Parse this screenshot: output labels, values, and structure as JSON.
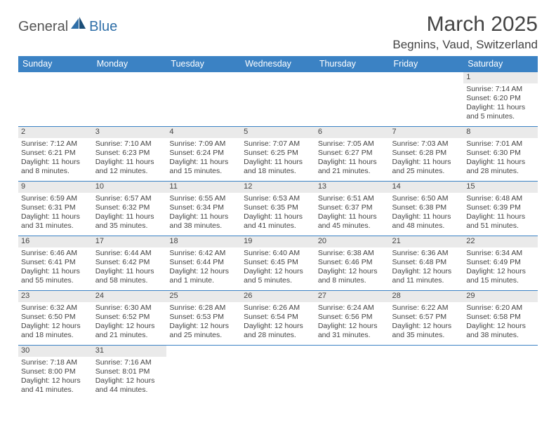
{
  "logo": {
    "part1": "General",
    "part2": "Blue"
  },
  "title": "March 2025",
  "location": "Begnins, Vaud, Switzerland",
  "colors": {
    "header_bg": "#3b82c4",
    "header_fg": "#ffffff",
    "daynum_bg": "#eaeaea",
    "border": "#3b82c4",
    "logo_accent": "#2f6fa8"
  },
  "weekdays": [
    "Sunday",
    "Monday",
    "Tuesday",
    "Wednesday",
    "Thursday",
    "Friday",
    "Saturday"
  ],
  "weeks": [
    [
      null,
      null,
      null,
      null,
      null,
      null,
      {
        "n": "1",
        "sr": "Sunrise: 7:14 AM",
        "ss": "Sunset: 6:20 PM",
        "d1": "Daylight: 11 hours",
        "d2": "and 5 minutes."
      }
    ],
    [
      {
        "n": "2",
        "sr": "Sunrise: 7:12 AM",
        "ss": "Sunset: 6:21 PM",
        "d1": "Daylight: 11 hours",
        "d2": "and 8 minutes."
      },
      {
        "n": "3",
        "sr": "Sunrise: 7:10 AM",
        "ss": "Sunset: 6:23 PM",
        "d1": "Daylight: 11 hours",
        "d2": "and 12 minutes."
      },
      {
        "n": "4",
        "sr": "Sunrise: 7:09 AM",
        "ss": "Sunset: 6:24 PM",
        "d1": "Daylight: 11 hours",
        "d2": "and 15 minutes."
      },
      {
        "n": "5",
        "sr": "Sunrise: 7:07 AM",
        "ss": "Sunset: 6:25 PM",
        "d1": "Daylight: 11 hours",
        "d2": "and 18 minutes."
      },
      {
        "n": "6",
        "sr": "Sunrise: 7:05 AM",
        "ss": "Sunset: 6:27 PM",
        "d1": "Daylight: 11 hours",
        "d2": "and 21 minutes."
      },
      {
        "n": "7",
        "sr": "Sunrise: 7:03 AM",
        "ss": "Sunset: 6:28 PM",
        "d1": "Daylight: 11 hours",
        "d2": "and 25 minutes."
      },
      {
        "n": "8",
        "sr": "Sunrise: 7:01 AM",
        "ss": "Sunset: 6:30 PM",
        "d1": "Daylight: 11 hours",
        "d2": "and 28 minutes."
      }
    ],
    [
      {
        "n": "9",
        "sr": "Sunrise: 6:59 AM",
        "ss": "Sunset: 6:31 PM",
        "d1": "Daylight: 11 hours",
        "d2": "and 31 minutes."
      },
      {
        "n": "10",
        "sr": "Sunrise: 6:57 AM",
        "ss": "Sunset: 6:32 PM",
        "d1": "Daylight: 11 hours",
        "d2": "and 35 minutes."
      },
      {
        "n": "11",
        "sr": "Sunrise: 6:55 AM",
        "ss": "Sunset: 6:34 PM",
        "d1": "Daylight: 11 hours",
        "d2": "and 38 minutes."
      },
      {
        "n": "12",
        "sr": "Sunrise: 6:53 AM",
        "ss": "Sunset: 6:35 PM",
        "d1": "Daylight: 11 hours",
        "d2": "and 41 minutes."
      },
      {
        "n": "13",
        "sr": "Sunrise: 6:51 AM",
        "ss": "Sunset: 6:37 PM",
        "d1": "Daylight: 11 hours",
        "d2": "and 45 minutes."
      },
      {
        "n": "14",
        "sr": "Sunrise: 6:50 AM",
        "ss": "Sunset: 6:38 PM",
        "d1": "Daylight: 11 hours",
        "d2": "and 48 minutes."
      },
      {
        "n": "15",
        "sr": "Sunrise: 6:48 AM",
        "ss": "Sunset: 6:39 PM",
        "d1": "Daylight: 11 hours",
        "d2": "and 51 minutes."
      }
    ],
    [
      {
        "n": "16",
        "sr": "Sunrise: 6:46 AM",
        "ss": "Sunset: 6:41 PM",
        "d1": "Daylight: 11 hours",
        "d2": "and 55 minutes."
      },
      {
        "n": "17",
        "sr": "Sunrise: 6:44 AM",
        "ss": "Sunset: 6:42 PM",
        "d1": "Daylight: 11 hours",
        "d2": "and 58 minutes."
      },
      {
        "n": "18",
        "sr": "Sunrise: 6:42 AM",
        "ss": "Sunset: 6:44 PM",
        "d1": "Daylight: 12 hours",
        "d2": "and 1 minute."
      },
      {
        "n": "19",
        "sr": "Sunrise: 6:40 AM",
        "ss": "Sunset: 6:45 PM",
        "d1": "Daylight: 12 hours",
        "d2": "and 5 minutes."
      },
      {
        "n": "20",
        "sr": "Sunrise: 6:38 AM",
        "ss": "Sunset: 6:46 PM",
        "d1": "Daylight: 12 hours",
        "d2": "and 8 minutes."
      },
      {
        "n": "21",
        "sr": "Sunrise: 6:36 AM",
        "ss": "Sunset: 6:48 PM",
        "d1": "Daylight: 12 hours",
        "d2": "and 11 minutes."
      },
      {
        "n": "22",
        "sr": "Sunrise: 6:34 AM",
        "ss": "Sunset: 6:49 PM",
        "d1": "Daylight: 12 hours",
        "d2": "and 15 minutes."
      }
    ],
    [
      {
        "n": "23",
        "sr": "Sunrise: 6:32 AM",
        "ss": "Sunset: 6:50 PM",
        "d1": "Daylight: 12 hours",
        "d2": "and 18 minutes."
      },
      {
        "n": "24",
        "sr": "Sunrise: 6:30 AM",
        "ss": "Sunset: 6:52 PM",
        "d1": "Daylight: 12 hours",
        "d2": "and 21 minutes."
      },
      {
        "n": "25",
        "sr": "Sunrise: 6:28 AM",
        "ss": "Sunset: 6:53 PM",
        "d1": "Daylight: 12 hours",
        "d2": "and 25 minutes."
      },
      {
        "n": "26",
        "sr": "Sunrise: 6:26 AM",
        "ss": "Sunset: 6:54 PM",
        "d1": "Daylight: 12 hours",
        "d2": "and 28 minutes."
      },
      {
        "n": "27",
        "sr": "Sunrise: 6:24 AM",
        "ss": "Sunset: 6:56 PM",
        "d1": "Daylight: 12 hours",
        "d2": "and 31 minutes."
      },
      {
        "n": "28",
        "sr": "Sunrise: 6:22 AM",
        "ss": "Sunset: 6:57 PM",
        "d1": "Daylight: 12 hours",
        "d2": "and 35 minutes."
      },
      {
        "n": "29",
        "sr": "Sunrise: 6:20 AM",
        "ss": "Sunset: 6:58 PM",
        "d1": "Daylight: 12 hours",
        "d2": "and 38 minutes."
      }
    ],
    [
      {
        "n": "30",
        "sr": "Sunrise: 7:18 AM",
        "ss": "Sunset: 8:00 PM",
        "d1": "Daylight: 12 hours",
        "d2": "and 41 minutes."
      },
      {
        "n": "31",
        "sr": "Sunrise: 7:16 AM",
        "ss": "Sunset: 8:01 PM",
        "d1": "Daylight: 12 hours",
        "d2": "and 44 minutes."
      },
      null,
      null,
      null,
      null,
      null
    ]
  ]
}
